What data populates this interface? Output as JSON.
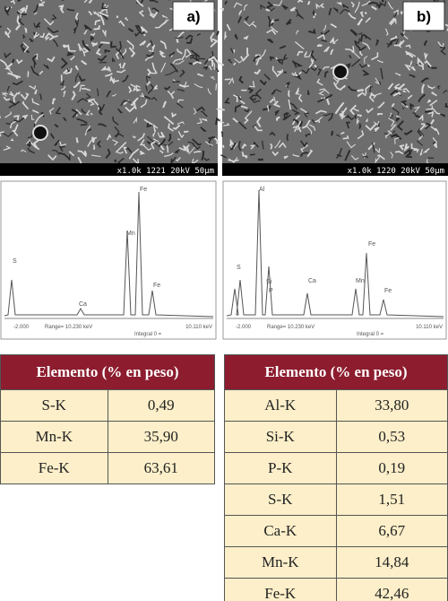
{
  "panels": [
    {
      "label": "a)",
      "sem_caption": "x1.0k 1221 20kV 50μm",
      "spectrum": {
        "peaks": [
          "S",
          "Ca",
          "Mn",
          "Fe",
          "Fe"
        ],
        "axis_left": "-2.000",
        "range": "Range= 10.230 keV",
        "integral": "Integral 0 =",
        "axis_right": "10.110 keV"
      },
      "table": {
        "header": "Elemento (% en peso)",
        "rows": [
          [
            "S-K",
            "0,49"
          ],
          [
            "Mn-K",
            "35,90"
          ],
          [
            "Fe-K",
            "63,61"
          ]
        ]
      }
    },
    {
      "label": "b)",
      "sem_caption": "x1.0k 1220 20kV 50μm",
      "spectrum": {
        "peaks": [
          "Al",
          "S",
          "Si",
          "P",
          "Ca",
          "Mn",
          "Fe",
          "Fe"
        ],
        "axis_left": "-2.000",
        "range": "Range= 10.230 keV",
        "integral": "Integral 0 =",
        "axis_right": "10.110 keV"
      },
      "table": {
        "header": "Elemento (% en peso)",
        "rows": [
          [
            "Al-K",
            "33,80"
          ],
          [
            "Si-K",
            "0,53"
          ],
          [
            "P-K",
            "0,19"
          ],
          [
            "S-K",
            "1,51"
          ],
          [
            "Ca-K",
            "6,67"
          ],
          [
            "Mn-K",
            "14,84"
          ],
          [
            "Fe-K",
            "42,46"
          ]
        ]
      }
    }
  ]
}
